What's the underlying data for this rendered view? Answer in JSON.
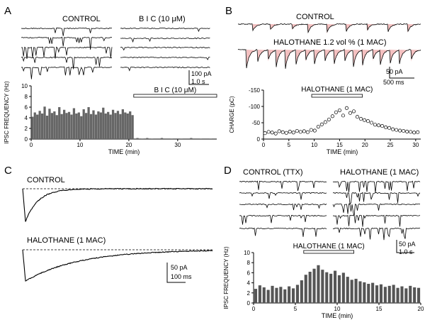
{
  "panels": {
    "A": {
      "letter": "A",
      "control_label": "CONTROL",
      "drug_label": "B I C (10 μM)",
      "scale_amp": "100 pA",
      "scale_time": "1.0 s",
      "bar_label": "B I C (10 μM)"
    },
    "B": {
      "letter": "B",
      "control_label": "CONTROL",
      "halo_label": "HALOTHANE 1.2 vol % (1 MAC)",
      "scale_amp": "50  pA",
      "scale_time": "500  ms",
      "bar_label": "HALOTHANE (1 MAC)"
    },
    "C": {
      "letter": "C",
      "control_label": "CONTROL",
      "halo_label": "HALOTHANE (1 MAC)",
      "scale_amp": "50  pA",
      "scale_time": "100  ms"
    },
    "D": {
      "letter": "D",
      "control_label": "CONTROL (TTX)",
      "halo_label": "HALOTHANE (1 MAC)",
      "scale_amp": "50 pA",
      "scale_time": "1.0  s",
      "bar_label": "HALOTHANE (1 MAC)"
    }
  },
  "chart_data": [
    {
      "id": "A-frequency",
      "type": "bar",
      "xlabel": "TIME (min)",
      "ylabel": "IPSC FREQUENCY (Hz)",
      "xlim": [
        0,
        38
      ],
      "ylim": [
        0,
        10
      ],
      "xticks": [
        0,
        10,
        20,
        30
      ],
      "yticks": [
        0,
        2,
        4,
        6,
        8,
        10
      ],
      "application_bar": {
        "label": "B I C (10 μM)",
        "start": 21,
        "end": 38
      },
      "x": [
        0.5,
        1.0,
        1.5,
        2.0,
        2.5,
        3.0,
        3.5,
        4.0,
        4.5,
        5.0,
        5.5,
        6.0,
        6.5,
        7.0,
        7.5,
        8.0,
        8.5,
        9.0,
        9.5,
        10.0,
        10.5,
        11.0,
        11.5,
        12.0,
        12.5,
        13.0,
        13.5,
        14.0,
        14.5,
        15.0,
        15.5,
        16.0,
        16.5,
        17.0,
        17.5,
        18.0,
        18.5,
        19.0,
        19.5,
        20.0,
        20.5,
        21.0,
        22,
        23,
        24,
        25,
        27,
        29,
        31,
        33,
        35,
        37
      ],
      "values": [
        4.2,
        5.0,
        4.6,
        5.3,
        4.8,
        6.1,
        4.4,
        5.7,
        4.9,
        5.2,
        4.5,
        6.0,
        4.7,
        5.5,
        4.9,
        5.1,
        4.6,
        5.8,
        4.8,
        5.0,
        4.3,
        5.6,
        4.9,
        6.0,
        4.7,
        5.4,
        4.6,
        5.2,
        5.0,
        5.9,
        4.8,
        5.1,
        4.6,
        5.5,
        4.9,
        5.3,
        4.7,
        5.6,
        5.0,
        4.8,
        5.2,
        4.5,
        0.2,
        0.1,
        0.2,
        0.1,
        0.2,
        0.1,
        0.1,
        0.2,
        0.1,
        0.1
      ]
    },
    {
      "id": "B-charge",
      "type": "scatter",
      "xlabel": "TIME (min)",
      "ylabel": "CHARGE (pC)",
      "xlim": [
        0,
        31
      ],
      "ylim": [
        0,
        -150
      ],
      "xticks": [
        0,
        5,
        10,
        15,
        20,
        25,
        30
      ],
      "yticks": [
        0,
        -50,
        -100,
        -150
      ],
      "application_bar": {
        "label": "HALOTHANE (1 MAC)",
        "start": 9.5,
        "end": 19.5
      },
      "x": [
        0.3,
        1.0,
        1.7,
        2.4,
        3.1,
        3.8,
        4.5,
        5.2,
        5.9,
        6.6,
        7.3,
        8.0,
        8.7,
        9.4,
        10.1,
        10.8,
        11.5,
        12.2,
        12.9,
        13.6,
        14.3,
        15.0,
        15.7,
        16.4,
        17.1,
        17.8,
        18.5,
        19.2,
        19.9,
        20.6,
        21.3,
        22.0,
        22.7,
        23.4,
        24.1,
        24.8,
        25.5,
        26.2,
        26.9,
        27.6,
        28.3,
        29.0,
        29.7,
        30.4
      ],
      "y": [
        -18,
        -22,
        -20,
        -17,
        -24,
        -21,
        -19,
        -23,
        -20,
        -25,
        -22,
        -24,
        -21,
        -28,
        -26,
        -38,
        -45,
        -52,
        -60,
        -70,
        -82,
        -88,
        -72,
        -95,
        -80,
        -85,
        -68,
        -62,
        -58,
        -55,
        -50,
        -44,
        -42,
        -40,
        -36,
        -34,
        -30,
        -28,
        -26,
        -25,
        -23,
        -22,
        -20,
        -21
      ]
    },
    {
      "id": "D-frequency",
      "type": "bar",
      "xlabel": "TIME (min)",
      "ylabel": "IPSC FREQUENCY (Hz)",
      "xlim": [
        0,
        20
      ],
      "ylim": [
        0,
        10
      ],
      "xticks": [
        0,
        5,
        10,
        15,
        20
      ],
      "yticks": [
        0,
        2,
        4,
        6,
        8,
        10
      ],
      "application_bar": {
        "label": "HALOTHANE (1 MAC)",
        "start": 6,
        "end": 12
      },
      "x": [
        0.25,
        0.75,
        1.25,
        1.75,
        2.25,
        2.75,
        3.25,
        3.75,
        4.25,
        4.75,
        5.25,
        5.75,
        6.25,
        6.75,
        7.25,
        7.75,
        8.25,
        8.75,
        9.25,
        9.75,
        10.25,
        10.75,
        11.25,
        11.75,
        12.25,
        12.75,
        13.25,
        13.75,
        14.25,
        14.75,
        15.25,
        15.75,
        16.25,
        16.75,
        17.25,
        17.75,
        18.25,
        18.75,
        19.25,
        19.75
      ],
      "values": [
        2.8,
        3.5,
        3.1,
        2.6,
        3.4,
        3.0,
        3.2,
        2.7,
        3.3,
        2.9,
        3.6,
        4.5,
        5.6,
        6.2,
        6.8,
        7.5,
        6.6,
        6.1,
        5.8,
        6.4,
        5.5,
        6.0,
        5.2,
        4.6,
        4.8,
        4.3,
        4.1,
        3.8,
        4.0,
        3.5,
        3.7,
        3.2,
        3.4,
        3.6,
        3.0,
        3.3,
        2.9,
        3.4,
        3.1,
        3.0
      ]
    }
  ]
}
